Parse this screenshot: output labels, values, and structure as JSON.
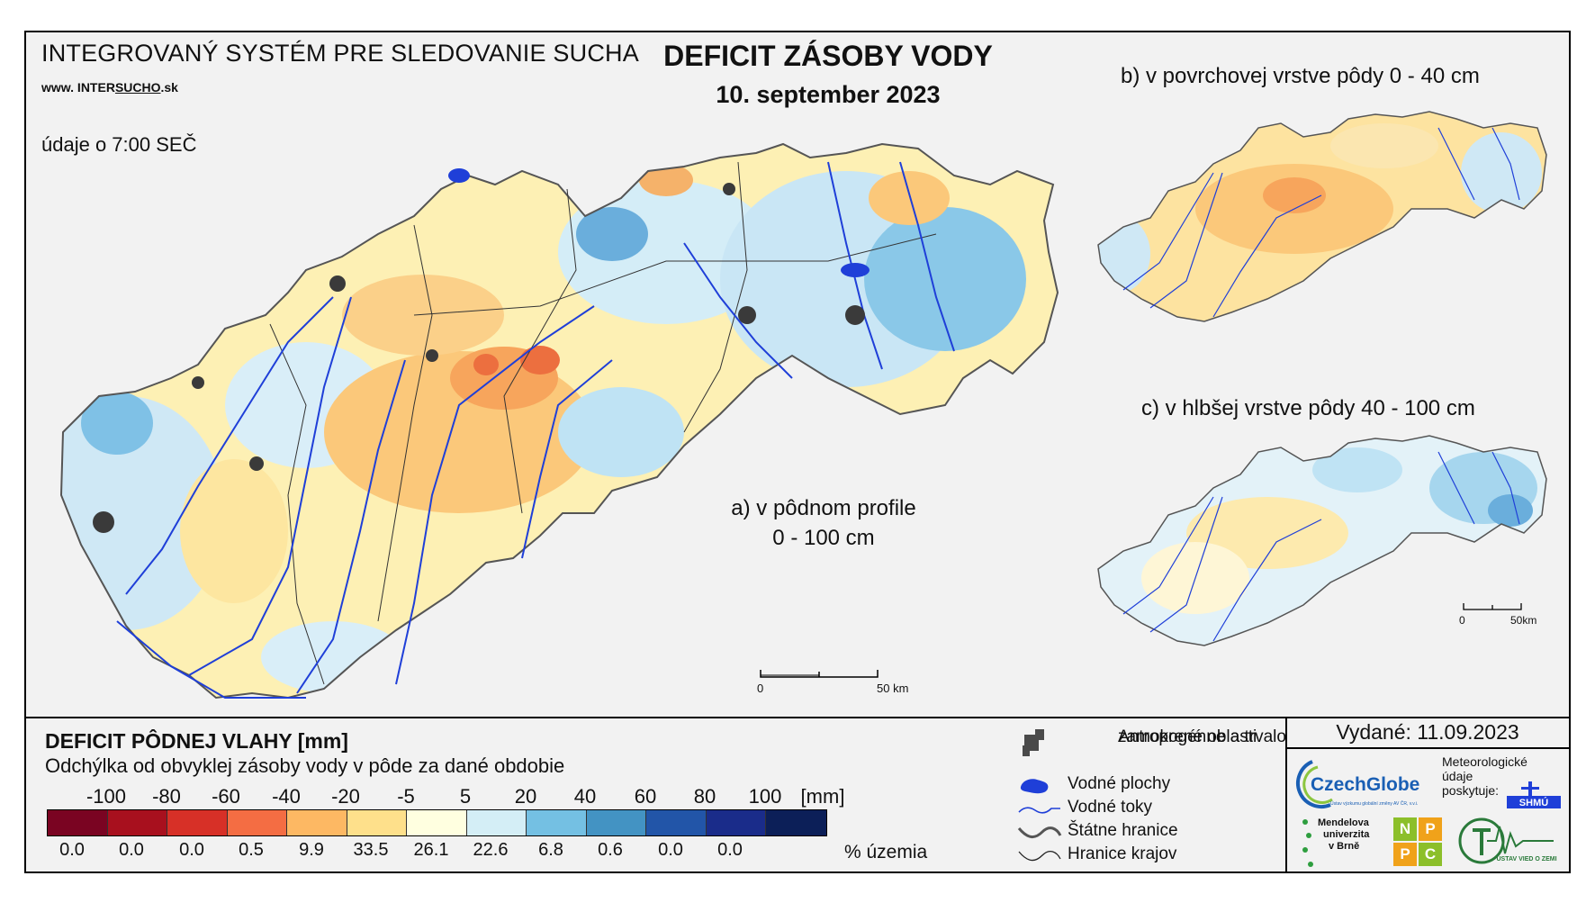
{
  "header": {
    "system_title": "INTEGROVANÝ SYSTÉM PRE SLEDOVANIE SUCHA",
    "url_prefix": "www. INTER",
    "url_underlined": "SUCHO",
    "url_suffix": ".sk",
    "time_note": "údaje o 7:00 SEČ"
  },
  "title": {
    "main": "DEFICIT ZÁSOBY VODY",
    "date": "10. september 2023"
  },
  "maps": {
    "main_label_line1": "a) v pôdnom profile",
    "main_label_line2": "0 - 100 cm",
    "inset_b_title": "b) v povrchovej vrstve pôdy 0 - 40 cm",
    "inset_c_title": "c) v hlbšej vrstve pôdy 40 - 100 cm",
    "main_scale": {
      "start": "0",
      "end": "50 km"
    },
    "inset_scale": {
      "start": "0",
      "end": "50km"
    }
  },
  "legend": {
    "title": "DEFICIT PÔDNEJ VLAHY [mm]",
    "subtitle": "Odchýlka od obvyklej zásoby vody v pôde za dané obdobie",
    "ticks": [
      "-100",
      "-80",
      "-60",
      "-40",
      "-20",
      "-5",
      "5",
      "20",
      "40",
      "60",
      "80",
      "100"
    ],
    "unit": "[mm]",
    "colors": [
      "#7a0422",
      "#a8101e",
      "#d73027",
      "#f46d43",
      "#fdb863",
      "#fee08b",
      "#ffffe0",
      "#d4eef6",
      "#74c0e3",
      "#4393c3",
      "#2255a8",
      "#1a2c8a",
      "#0c1f58"
    ],
    "percentages": [
      "0.0",
      "0.0",
      "0.0",
      "0.5",
      "9.9",
      "33.5",
      "26.1",
      "22.6",
      "6.8",
      "0.6",
      "0.0",
      "0.0"
    ],
    "percent_label": "% územia"
  },
  "symbols": {
    "items": [
      {
        "icon": "urban-area-icon",
        "label_line1": "Antropogénne a trvalo",
        "label_line2": "zamokrené oblasti"
      },
      {
        "icon": "water-body-icon",
        "label_line1": "Vodné plochy"
      },
      {
        "icon": "river-icon",
        "label_line1": "Vodné toky"
      },
      {
        "icon": "state-border-icon",
        "label_line1": "Štátne hranice"
      },
      {
        "icon": "region-border-icon",
        "label_line1": "Hranice krajov"
      }
    ]
  },
  "issued": {
    "text": "Vydané: 11.09.2023"
  },
  "logos": {
    "czechglobe": "CzechGlobe",
    "czechglobe_sub": "Ústav výzkumu globální změny AV ČR, v.v.i.",
    "meteo_line1": "Meteorologické",
    "meteo_line2": "údaje",
    "meteo_line3": "poskytuje:",
    "shmu": "SHMÚ",
    "mendel_line1": "Mendelova",
    "mendel_line2": "univerzita",
    "mendel_line3": "v Brně",
    "nppc_letters": [
      "N",
      "P",
      "P",
      "C"
    ],
    "uvz": "ÚSTAV VIED O ZEMI"
  }
}
